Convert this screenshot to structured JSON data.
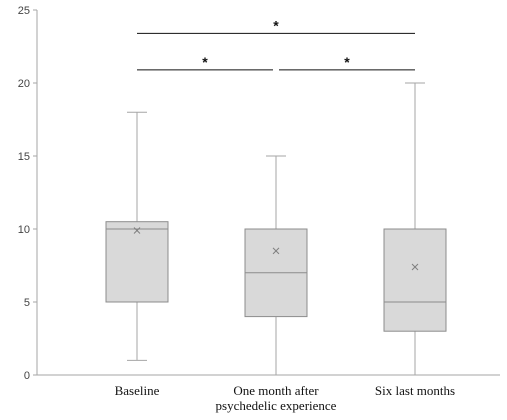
{
  "chart_data": {
    "type": "box",
    "title": "",
    "xlabel": "",
    "ylabel": "",
    "ylim": [
      0,
      25
    ],
    "yticks": [
      0,
      5,
      10,
      15,
      20,
      25
    ],
    "grid": false,
    "categories": [
      [
        "Baseline"
      ],
      [
        "One month after",
        "psychedelic experience"
      ],
      [
        "Six last months"
      ]
    ],
    "boxes": [
      {
        "min": 1,
        "q1": 5,
        "median": 10,
        "q3": 10.5,
        "max": 18,
        "mean": 9.9
      },
      {
        "min": 0,
        "q1": 4,
        "median": 7,
        "q3": 10,
        "max": 15,
        "mean": 8.5
      },
      {
        "min": 0,
        "q1": 3,
        "median": 5,
        "q3": 10,
        "max": 20,
        "mean": 7.4
      }
    ],
    "significance": [
      {
        "from": 0,
        "to": 2,
        "y": 23.4,
        "label": "*"
      },
      {
        "from": 0,
        "to": 1,
        "y": 20.9,
        "label": "*"
      },
      {
        "from": 1,
        "to": 2,
        "y": 20.9,
        "label": "*"
      }
    ],
    "colors": {
      "box_fill": "#d9d9d9",
      "box_stroke": "#8c8c8c",
      "whisker": "#a6a6a6",
      "mean_marker": "#7f7f7f",
      "axis": "#a6a6a6",
      "bracket": "#111111"
    }
  }
}
